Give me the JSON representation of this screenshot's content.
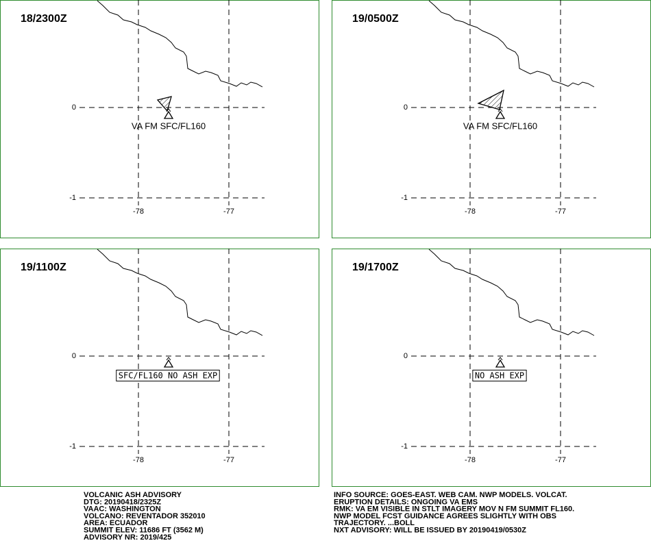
{
  "panels": [
    {
      "time": "18/2300Z",
      "lon_ticks": [
        -78,
        -77
      ],
      "lat_ticks": [
        0,
        -1
      ],
      "label": "VA FM SFC/FL160"
    },
    {
      "time": "19/0500Z",
      "lon_ticks": [
        -78,
        -77
      ],
      "lat_ticks": [
        0,
        -1
      ],
      "label": "VA FM SFC/FL160"
    },
    {
      "time": "19/1100Z",
      "lon_ticks": [
        -78,
        -77
      ],
      "lat_ticks": [
        0,
        -1
      ],
      "label": "SFC/FL160 NO ASH EXP"
    },
    {
      "time": "19/1700Z",
      "lon_ticks": [
        -78,
        -77
      ],
      "lat_ticks": [
        0,
        -1
      ],
      "label": "NO ASH EXP"
    }
  ],
  "advisory_left": [
    "VOLCANIC ASH ADVISORY",
    "DTG: 20190418/2325Z",
    "VAAC: WASHINGTON",
    "VOLCANO: REVENTADOR 352010",
    "AREA: ECUADOR",
    "SUMMIT ELEV: 11686 FT (3562 M)",
    "ADVISORY NR: 2019/425"
  ],
  "advisory_right": [
    "INFO SOURCE: GOES-EAST. WEB CAM. NWP MODELS. VOLCAT.",
    "ERUPTION DETAILS: ONGOING VA EMS",
    "RMK: VA EM VISIBLE IN STLT IMAGERY MOV N FM SUMMIT FL160.",
    "NWP MODEL FCST GUIDANCE AGREES SLIGHTLY WITH OBS",
    "TRAJECTORY. ...BOLL",
    "NXT ADVISORY: WILL BE ISSUED BY 20190419/0530Z"
  ]
}
